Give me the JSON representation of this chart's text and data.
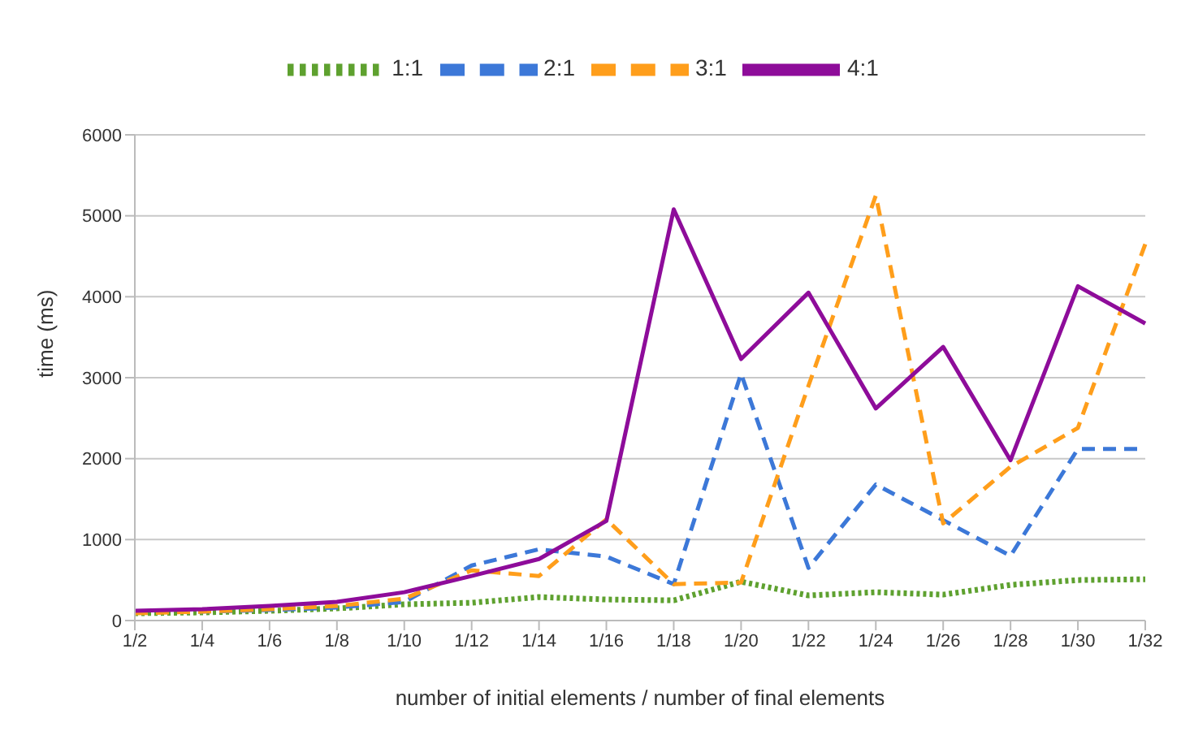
{
  "chart_data": {
    "type": "line",
    "xlabel": "number of initial elements / number of final elements",
    "ylabel": "time (ms)",
    "categories": [
      "1/2",
      "1/4",
      "1/6",
      "1/8",
      "1/10",
      "1/12",
      "1/14",
      "1/16",
      "1/18",
      "1/20",
      "1/22",
      "1/24",
      "1/26",
      "1/28",
      "1/30",
      "1/32"
    ],
    "series": [
      {
        "name": "1:1",
        "color": "#5ea12f",
        "line_style": "dotted",
        "values": [
          90,
          100,
          120,
          150,
          200,
          220,
          290,
          260,
          250,
          480,
          310,
          350,
          320,
          440,
          500,
          510
        ]
      },
      {
        "name": "2:1",
        "color": "#3c78d8",
        "line_style": "dashed",
        "values": [
          100,
          110,
          130,
          160,
          230,
          680,
          880,
          790,
          450,
          3050,
          650,
          1680,
          1240,
          800,
          2120,
          2120
        ]
      },
      {
        "name": "3:1",
        "color": "#ff9e1b",
        "line_style": "dashed",
        "values": [
          90,
          110,
          140,
          180,
          270,
          620,
          550,
          1250,
          450,
          470,
          2900,
          5250,
          1200,
          1900,
          2380,
          4650
        ]
      },
      {
        "name": "4:1",
        "color": "#8e0c9a",
        "line_style": "solid",
        "values": [
          120,
          140,
          180,
          230,
          350,
          550,
          760,
          1230,
          5080,
          3230,
          4050,
          2620,
          3380,
          1980,
          4130,
          3670
        ]
      }
    ],
    "ylim": [
      0,
      6000
    ],
    "yticks": [
      0,
      1000,
      2000,
      3000,
      4000,
      5000,
      6000
    ],
    "grid": "y",
    "legend": "top",
    "marker": "none"
  }
}
